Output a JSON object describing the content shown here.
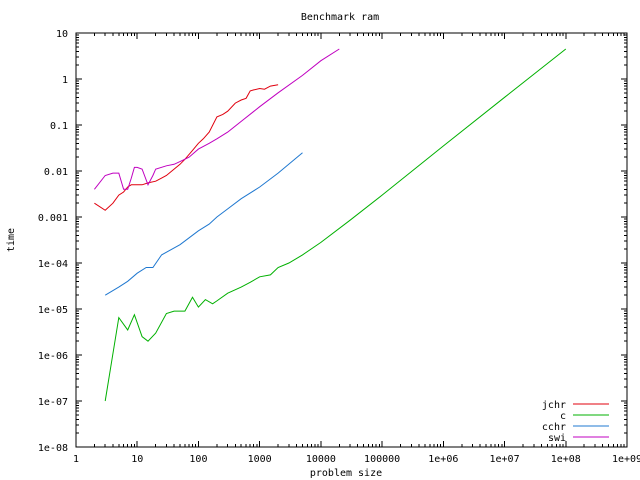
{
  "chart_data": {
    "type": "line",
    "title": "Benchmark ram",
    "xlabel": "problem size",
    "ylabel": "time",
    "xscale": "log",
    "yscale": "log",
    "xlim": [
      1,
      1000000000
    ],
    "ylim": [
      1e-08,
      10
    ],
    "grid": false,
    "legend_position": "bottom-right",
    "xticks": [
      {
        "value": 1,
        "label": "1"
      },
      {
        "value": 10,
        "label": "10"
      },
      {
        "value": 100,
        "label": "100"
      },
      {
        "value": 1000,
        "label": "1000"
      },
      {
        "value": 10000,
        "label": "10000"
      },
      {
        "value": 100000,
        "label": "100000"
      },
      {
        "value": 1000000,
        "label": "1e+06"
      },
      {
        "value": 10000000,
        "label": "1e+07"
      },
      {
        "value": 100000000,
        "label": "1e+08"
      },
      {
        "value": 1000000000,
        "label": "1e+09"
      }
    ],
    "yticks": [
      {
        "value": 1e-08,
        "label": "1e-08"
      },
      {
        "value": 1e-07,
        "label": "1e-07"
      },
      {
        "value": 1e-06,
        "label": "1e-06"
      },
      {
        "value": 1e-05,
        "label": "1e-05"
      },
      {
        "value": 0.0001,
        "label": "1e-04"
      },
      {
        "value": 0.001,
        "label": "0.001"
      },
      {
        "value": 0.01,
        "label": "0.01"
      },
      {
        "value": 0.1,
        "label": "0.1"
      },
      {
        "value": 1,
        "label": "1"
      },
      {
        "value": 10,
        "label": "10"
      }
    ],
    "series": [
      {
        "name": "jchr",
        "color": "#e0000e",
        "points": [
          [
            2,
            0.002
          ],
          [
            3,
            0.0014
          ],
          [
            4,
            0.002
          ],
          [
            5,
            0.003
          ],
          [
            6,
            0.0035
          ],
          [
            7,
            0.0045
          ],
          [
            8,
            0.005
          ],
          [
            10,
            0.005
          ],
          [
            12,
            0.005
          ],
          [
            15,
            0.0055
          ],
          [
            20,
            0.006
          ],
          [
            25,
            0.007
          ],
          [
            30,
            0.008
          ],
          [
            40,
            0.011
          ],
          [
            50,
            0.014
          ],
          [
            60,
            0.018
          ],
          [
            80,
            0.028
          ],
          [
            100,
            0.04
          ],
          [
            120,
            0.05
          ],
          [
            150,
            0.07
          ],
          [
            200,
            0.15
          ],
          [
            250,
            0.17
          ],
          [
            300,
            0.2
          ],
          [
            400,
            0.3
          ],
          [
            500,
            0.35
          ],
          [
            600,
            0.38
          ],
          [
            700,
            0.55
          ],
          [
            800,
            0.58
          ],
          [
            1000,
            0.62
          ],
          [
            1200,
            0.6
          ],
          [
            1500,
            0.7
          ],
          [
            2000,
            0.75
          ]
        ]
      },
      {
        "name": "c",
        "color": "#00b000",
        "points": [
          [
            3,
            1e-07
          ],
          [
            5,
            6.5e-06
          ],
          [
            7,
            3.5e-06
          ],
          [
            9,
            7.5e-06
          ],
          [
            12,
            2.5e-06
          ],
          [
            15,
            2e-06
          ],
          [
            20,
            3e-06
          ],
          [
            30,
            8e-06
          ],
          [
            40,
            9e-06
          ],
          [
            60,
            9e-06
          ],
          [
            80,
            1.8e-05
          ],
          [
            100,
            1.1e-05
          ],
          [
            130,
            1.6e-05
          ],
          [
            170,
            1.3e-05
          ],
          [
            200,
            1.5e-05
          ],
          [
            300,
            2.2e-05
          ],
          [
            500,
            3e-05
          ],
          [
            700,
            3.8e-05
          ],
          [
            1000,
            5e-05
          ],
          [
            1500,
            5.5e-05
          ],
          [
            2000,
            8e-05
          ],
          [
            3000,
            0.0001
          ],
          [
            5000,
            0.00015
          ],
          [
            10000,
            0.00028
          ],
          [
            30000,
            0.00085
          ],
          [
            100000,
            0.003
          ],
          [
            1000000,
            0.035
          ],
          [
            10000000,
            0.4
          ],
          [
            100000000,
            4.5
          ]
        ]
      },
      {
        "name": "cchr",
        "color": "#1f78d0",
        "points": [
          [
            3,
            2e-05
          ],
          [
            5,
            3e-05
          ],
          [
            7,
            4e-05
          ],
          [
            10,
            6e-05
          ],
          [
            14,
            8e-05
          ],
          [
            18,
            8e-05
          ],
          [
            25,
            0.00015
          ],
          [
            50,
            0.00025
          ],
          [
            100,
            0.0005
          ],
          [
            150,
            0.0007
          ],
          [
            200,
            0.001
          ],
          [
            300,
            0.0015
          ],
          [
            500,
            0.0025
          ],
          [
            1000,
            0.0045
          ],
          [
            2000,
            0.009
          ],
          [
            5000,
            0.025
          ]
        ]
      },
      {
        "name": "swi",
        "color": "#c000c0",
        "points": [
          [
            2,
            0.004
          ],
          [
            3,
            0.008
          ],
          [
            4,
            0.009
          ],
          [
            5,
            0.009
          ],
          [
            6,
            0.004
          ],
          [
            7,
            0.004
          ],
          [
            8,
            0.007
          ],
          [
            9,
            0.012
          ],
          [
            10,
            0.012
          ],
          [
            12,
            0.011
          ],
          [
            15,
            0.005
          ],
          [
            18,
            0.008
          ],
          [
            20,
            0.011
          ],
          [
            30,
            0.013
          ],
          [
            40,
            0.014
          ],
          [
            50,
            0.016
          ],
          [
            70,
            0.02
          ],
          [
            100,
            0.03
          ],
          [
            150,
            0.04
          ],
          [
            200,
            0.05
          ],
          [
            300,
            0.07
          ],
          [
            500,
            0.12
          ],
          [
            1000,
            0.25
          ],
          [
            2000,
            0.5
          ],
          [
            5000,
            1.2
          ],
          [
            10000,
            2.5
          ],
          [
            20000,
            4.5
          ]
        ]
      }
    ]
  }
}
